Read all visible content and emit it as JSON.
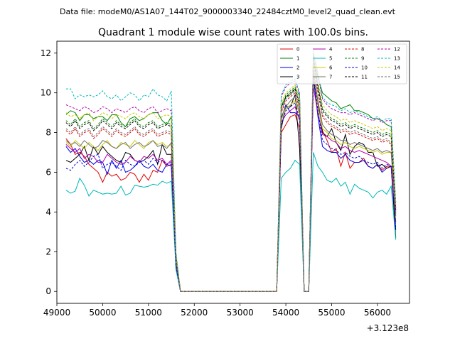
{
  "header": {
    "data_file_label": "Data file: modeM0/AS1A07_144T02_9000003340_22484cztM0_level2_quad_clean.evt"
  },
  "chart_data": {
    "type": "line",
    "title": "Quadrant 1 module wise count rates with 100.0s bins.",
    "xlabel": "",
    "ylabel": "",
    "x_offset_label": "+3.123e8",
    "xlim": [
      49000,
      56700
    ],
    "ylim": [
      -0.6,
      12.6
    ],
    "x_ticks": [
      49000,
      50000,
      51000,
      52000,
      53000,
      54000,
      55000,
      56000
    ],
    "x_tick_labels": [
      "49000",
      "50000",
      "51000",
      "52000",
      "53000",
      "54000",
      "55000",
      "56000"
    ],
    "y_ticks": [
      0,
      2,
      4,
      6,
      8,
      10,
      12
    ],
    "y_tick_labels": [
      "0",
      "2",
      "4",
      "6",
      "8",
      "10",
      "12"
    ],
    "grid": false,
    "legend_position": "top-right",
    "x": [
      49200,
      49300,
      49400,
      49500,
      49600,
      49700,
      49800,
      49900,
      50000,
      50100,
      50200,
      50300,
      50400,
      50500,
      50600,
      50700,
      50800,
      50900,
      51000,
      51100,
      51200,
      51300,
      51400,
      51500,
      51600,
      51700,
      51800,
      53800,
      53900,
      54000,
      54100,
      54200,
      54300,
      54400,
      54500,
      54600,
      54700,
      54800,
      54900,
      55000,
      55100,
      55200,
      55300,
      55400,
      55500,
      55600,
      55700,
      55800,
      55900,
      56000,
      56100,
      56200,
      56300,
      56400
    ],
    "series": [
      {
        "name": "0",
        "color": "#e00000",
        "dash": "solid",
        "values": [
          7.7,
          7.4,
          6.9,
          7.0,
          6.8,
          6.4,
          6.2,
          6.0,
          5.5,
          6.0,
          5.8,
          5.9,
          5.6,
          5.7,
          6.0,
          5.9,
          5.5,
          5.9,
          5.6,
          6.1,
          6.0,
          6.6,
          6.3,
          6.4,
          1.3,
          0,
          0,
          0,
          8.0,
          8.4,
          8.8,
          8.9,
          8.2,
          0,
          0,
          11.0,
          9.5,
          8.1,
          7.6,
          7.0,
          7.2,
          6.3,
          7.0,
          6.2,
          6.5,
          6.5,
          6.7,
          6.3,
          6.2,
          6.4,
          6.1,
          6.3,
          6.3,
          4.2
        ]
      },
      {
        "name": "1",
        "color": "#008000",
        "dash": "solid",
        "values": [
          8.9,
          9.1,
          9.0,
          8.6,
          8.9,
          8.9,
          8.7,
          8.8,
          8.8,
          8.6,
          8.9,
          8.9,
          8.5,
          8.3,
          8.7,
          8.8,
          8.6,
          8.7,
          8.9,
          9.0,
          9.0,
          8.6,
          8.4,
          8.8,
          1.8,
          0,
          0,
          0,
          9.3,
          9.8,
          9.9,
          10.2,
          9.9,
          0,
          0,
          11.6,
          10.8,
          10.0,
          9.8,
          9.6,
          9.5,
          9.2,
          9.3,
          9.4,
          9.1,
          9.1,
          9.0,
          8.9,
          8.7,
          8.7,
          8.6,
          8.4,
          8.3,
          3.9
        ]
      },
      {
        "name": "2",
        "color": "#0000e0",
        "dash": "solid",
        "values": [
          7.3,
          7.0,
          7.2,
          6.8,
          6.5,
          6.6,
          6.4,
          6.6,
          6.5,
          5.9,
          6.6,
          6.2,
          6.6,
          6.0,
          6.1,
          6.3,
          6.6,
          6.3,
          6.2,
          6.4,
          6.1,
          6.0,
          6.4,
          6.3,
          1.2,
          0,
          0,
          0,
          8.7,
          9.4,
          9.0,
          9.0,
          8.8,
          0,
          0,
          10.8,
          8.8,
          7.3,
          7.1,
          7.0,
          7.0,
          6.7,
          6.9,
          6.6,
          6.5,
          6.5,
          6.6,
          6.3,
          6.2,
          6.4,
          6.0,
          6.2,
          6.3,
          3.1
        ]
      },
      {
        "name": "3",
        "color": "#000000",
        "dash": "solid",
        "values": [
          6.6,
          6.5,
          6.7,
          6.9,
          7.3,
          6.6,
          7.3,
          6.9,
          7.3,
          7.0,
          6.8,
          6.6,
          6.5,
          7.0,
          6.9,
          6.6,
          6.5,
          6.6,
          6.8,
          7.1,
          6.4,
          7.4,
          6.9,
          6.9,
          1.3,
          0,
          0,
          0,
          8.2,
          9.3,
          9.3,
          9.9,
          7.2,
          0,
          0,
          10.6,
          9.6,
          8.0,
          7.8,
          8.2,
          7.5,
          7.1,
          7.9,
          6.9,
          7.3,
          7.5,
          7.4,
          7.0,
          7.0,
          6.3,
          6.4,
          6.2,
          6.3,
          2.7
        ]
      },
      {
        "name": "4",
        "color": "#b000b0",
        "dash": "solid",
        "values": [
          7.4,
          7.2,
          7.0,
          7.2,
          6.7,
          6.9,
          6.8,
          6.5,
          6.5,
          6.9,
          6.7,
          6.5,
          6.4,
          6.5,
          6.8,
          6.6,
          6.5,
          6.8,
          6.7,
          6.9,
          6.6,
          6.7,
          6.4,
          6.6,
          1.4,
          0,
          0,
          0,
          8.5,
          8.9,
          9.1,
          9.3,
          8.6,
          0,
          0,
          10.3,
          9.0,
          7.9,
          7.8,
          7.6,
          7.5,
          7.2,
          7.3,
          7.1,
          7.0,
          7.1,
          7.0,
          6.9,
          6.8,
          6.7,
          6.6,
          6.5,
          6.3,
          3.5
        ]
      },
      {
        "name": "5",
        "color": "#00b8b8",
        "dash": "solid",
        "values": [
          5.1,
          4.95,
          5.05,
          5.7,
          5.35,
          4.8,
          5.1,
          5.0,
          4.9,
          4.95,
          4.9,
          4.95,
          5.3,
          4.85,
          4.95,
          5.35,
          5.3,
          5.25,
          5.3,
          5.4,
          5.35,
          5.55,
          5.45,
          5.55,
          1.1,
          0,
          0,
          0,
          5.7,
          6.0,
          6.2,
          6.6,
          6.4,
          0,
          0,
          7.0,
          6.3,
          6.0,
          5.6,
          5.5,
          5.7,
          5.3,
          5.5,
          4.9,
          5.4,
          5.2,
          5.1,
          5.0,
          4.7,
          5.0,
          5.1,
          4.9,
          5.3,
          2.6
        ]
      },
      {
        "name": "6",
        "color": "#c8c800",
        "dash": "solid",
        "values": [
          7.5,
          7.3,
          7.6,
          7.4,
          7.2,
          7.5,
          7.3,
          7.1,
          7.4,
          7.6,
          7.3,
          7.2,
          7.5,
          7.4,
          7.3,
          7.6,
          7.4,
          7.2,
          7.5,
          7.6,
          7.4,
          7.5,
          7.3,
          7.4,
          1.5,
          0,
          0,
          0,
          8.6,
          9.2,
          9.4,
          9.6,
          8.9,
          0,
          0,
          11.0,
          9.3,
          8.2,
          8.0,
          7.7,
          7.6,
          7.4,
          7.5,
          7.3,
          7.2,
          7.3,
          7.2,
          7.1,
          7.0,
          7.1,
          6.9,
          7.0,
          7.0,
          3.7
        ]
      },
      {
        "name": "7",
        "color": "#707070",
        "dash": "solid",
        "values": [
          7.6,
          7.4,
          7.5,
          7.3,
          7.6,
          7.4,
          7.2,
          7.3,
          7.6,
          7.5,
          7.3,
          7.2,
          7.4,
          7.5,
          7.2,
          7.4,
          7.5,
          7.3,
          7.4,
          7.6,
          7.3,
          7.4,
          7.2,
          7.5,
          1.5,
          0,
          0,
          0,
          8.8,
          9.3,
          9.6,
          9.8,
          9.0,
          0,
          0,
          11.2,
          9.6,
          8.4,
          8.1,
          7.9,
          7.8,
          7.6,
          7.6,
          7.4,
          7.5,
          7.4,
          7.3,
          7.2,
          7.1,
          7.2,
          7.0,
          7.1,
          7.0,
          3.8
        ]
      },
      {
        "name": "8",
        "color": "#e00000",
        "dash": "dashed",
        "values": [
          8.1,
          7.9,
          8.2,
          7.8,
          8.0,
          8.1,
          7.7,
          7.9,
          8.2,
          8.0,
          7.8,
          8.1,
          7.9,
          7.8,
          8.0,
          8.2,
          7.9,
          7.8,
          8.0,
          8.1,
          7.8,
          7.9,
          8.0,
          7.9,
          1.6,
          0,
          0,
          0,
          9.0,
          9.6,
          9.8,
          10.0,
          9.2,
          0,
          0,
          11.4,
          10.0,
          8.8,
          8.5,
          8.3,
          8.2,
          8.0,
          8.1,
          7.9,
          8.0,
          7.9,
          7.8,
          7.7,
          7.6,
          7.7,
          7.5,
          7.6,
          7.4,
          4.0
        ]
      },
      {
        "name": "9",
        "color": "#008000",
        "dash": "dashed",
        "values": [
          8.6,
          8.4,
          8.7,
          8.3,
          8.5,
          8.6,
          8.2,
          8.4,
          8.7,
          8.5,
          8.3,
          8.6,
          8.4,
          8.3,
          8.5,
          8.7,
          8.4,
          8.3,
          8.5,
          8.6,
          8.3,
          8.4,
          8.5,
          8.4,
          1.7,
          0,
          0,
          0,
          9.3,
          9.9,
          10.1,
          10.3,
          9.5,
          0,
          0,
          11.7,
          10.4,
          9.2,
          8.9,
          8.7,
          8.6,
          8.4,
          8.5,
          8.3,
          8.4,
          8.3,
          8.2,
          8.1,
          8.0,
          8.1,
          7.9,
          8.0,
          7.9,
          4.2
        ]
      },
      {
        "name": "10",
        "color": "#0000e0",
        "dash": "dashed",
        "values": [
          6.2,
          6.1,
          6.4,
          6.6,
          6.3,
          6.5,
          6.8,
          6.9,
          6.2,
          6.4,
          6.5,
          6.3,
          6.1,
          6.6,
          6.4,
          6.3,
          6.5,
          6.6,
          6.4,
          6.7,
          6.5,
          6.6,
          6.4,
          6.5,
          1.3,
          0,
          0,
          0,
          8.4,
          9.1,
          9.3,
          9.5,
          8.7,
          0,
          0,
          10.9,
          9.1,
          7.6,
          7.4,
          7.2,
          7.1,
          6.9,
          7.0,
          6.8,
          6.7,
          6.8,
          6.6,
          6.5,
          6.4,
          6.5,
          6.2,
          6.4,
          6.3,
          3.2
        ]
      },
      {
        "name": "11",
        "color": "#000000",
        "dash": "dashed",
        "values": [
          8.5,
          8.3,
          8.6,
          8.2,
          8.4,
          8.5,
          8.1,
          8.3,
          8.6,
          8.4,
          8.2,
          8.5,
          8.3,
          8.2,
          8.4,
          8.6,
          8.3,
          8.2,
          8.4,
          8.5,
          8.2,
          8.3,
          8.4,
          8.3,
          1.7,
          0,
          0,
          0,
          9.2,
          9.8,
          10.0,
          10.2,
          9.4,
          0,
          0,
          11.8,
          10.3,
          9.1,
          8.8,
          8.6,
          8.5,
          8.3,
          8.4,
          8.2,
          8.3,
          8.2,
          8.1,
          8.0,
          7.9,
          8.0,
          7.8,
          7.9,
          7.8,
          4.1
        ]
      },
      {
        "name": "12",
        "color": "#b000b0",
        "dash": "dashed",
        "values": [
          9.4,
          9.3,
          9.2,
          9.1,
          9.3,
          9.2,
          9.0,
          9.1,
          9.3,
          9.2,
          9.0,
          9.2,
          9.1,
          9.0,
          9.2,
          9.3,
          9.1,
          9.0,
          9.2,
          9.3,
          9.0,
          9.1,
          9.2,
          9.1,
          1.9,
          0,
          0,
          0,
          9.8,
          10.3,
          10.5,
          10.6,
          9.9,
          0,
          0,
          12.0,
          10.9,
          9.7,
          9.4,
          9.2,
          9.1,
          9.0,
          9.0,
          8.9,
          9.0,
          8.9,
          8.8,
          8.7,
          8.6,
          8.7,
          8.5,
          8.6,
          8.6,
          4.4
        ]
      },
      {
        "name": "13",
        "color": "#00b8b8",
        "dash": "dashed",
        "values": [
          10.2,
          10.2,
          9.7,
          9.9,
          9.8,
          9.9,
          9.8,
          9.9,
          10.1,
          9.8,
          9.7,
          9.9,
          9.6,
          9.8,
          10.0,
          9.9,
          9.6,
          9.9,
          9.8,
          10.2,
          9.9,
          9.8,
          9.6,
          10.1,
          2.0,
          0,
          0,
          0,
          9.9,
          10.4,
          10.6,
          10.7,
          10.0,
          0,
          0,
          12.1,
          11.0,
          9.8,
          9.5,
          9.4,
          9.3,
          9.1,
          9.2,
          9.0,
          9.1,
          9.0,
          8.9,
          8.8,
          8.7,
          8.8,
          8.6,
          8.7,
          8.7,
          4.5
        ]
      },
      {
        "name": "14",
        "color": "#c8c800",
        "dash": "dashed",
        "values": [
          9.0,
          8.8,
          8.9,
          8.7,
          8.9,
          9.0,
          8.6,
          8.8,
          9.0,
          8.9,
          8.7,
          8.9,
          8.8,
          8.7,
          8.9,
          9.0,
          8.8,
          8.7,
          8.9,
          9.0,
          8.7,
          8.8,
          8.9,
          8.8,
          1.8,
          0,
          0,
          0,
          9.5,
          10.0,
          10.2,
          10.4,
          9.7,
          0,
          0,
          11.9,
          10.6,
          9.4,
          9.1,
          8.9,
          8.8,
          8.6,
          8.7,
          8.5,
          8.6,
          8.5,
          8.4,
          8.3,
          8.2,
          8.3,
          8.1,
          8.2,
          8.1,
          4.3
        ]
      },
      {
        "name": "15",
        "color": "#707070",
        "dash": "dashed",
        "values": [
          8.2,
          8.0,
          8.3,
          7.9,
          8.1,
          8.2,
          7.8,
          8.0,
          8.3,
          8.1,
          7.9,
          8.2,
          8.0,
          7.9,
          8.1,
          8.3,
          8.0,
          7.9,
          8.1,
          8.2,
          7.9,
          8.0,
          8.1,
          8.0,
          1.6,
          0,
          0,
          0,
          9.1,
          9.7,
          9.9,
          10.1,
          9.3,
          0,
          0,
          11.5,
          10.1,
          8.9,
          8.6,
          8.4,
          8.3,
          8.1,
          8.2,
          8.0,
          8.1,
          8.0,
          7.9,
          7.8,
          7.7,
          7.8,
          7.6,
          7.7,
          7.5,
          4.0
        ]
      }
    ]
  }
}
